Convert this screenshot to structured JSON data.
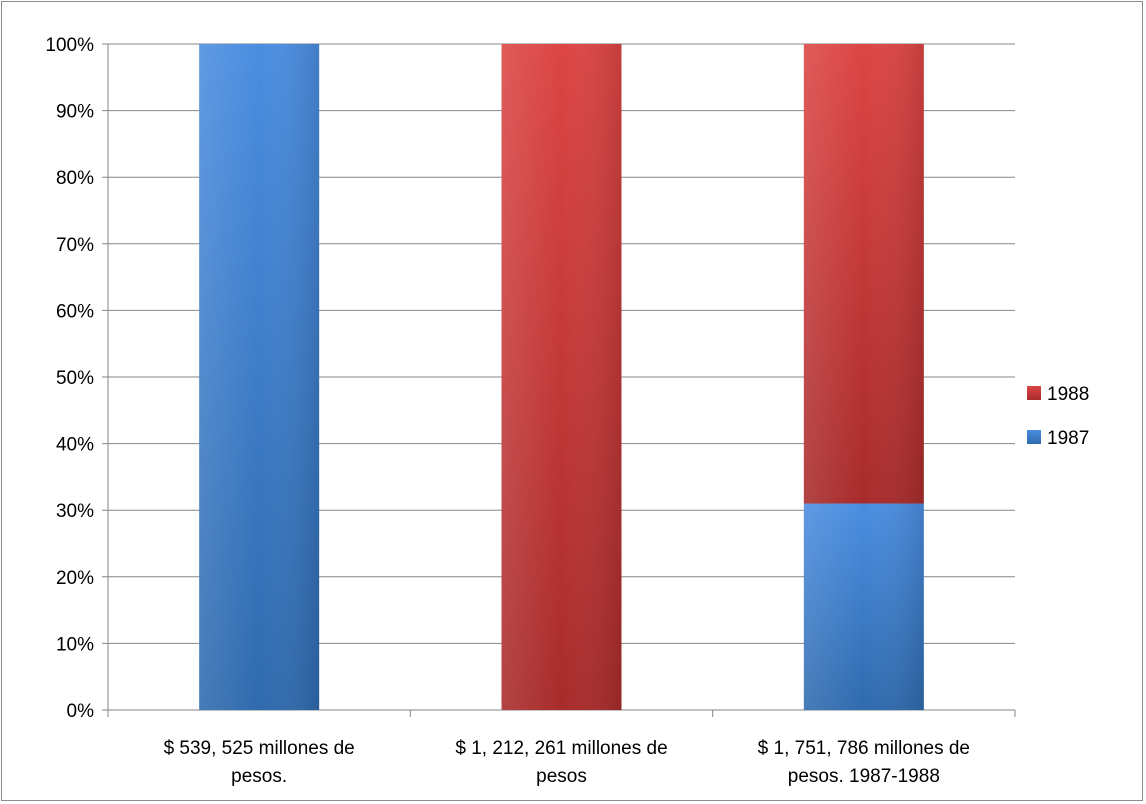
{
  "chart_data": {
    "type": "bar",
    "stacked": true,
    "percent_stacked": true,
    "categories": [
      [
        "$ 539, 525 millones de",
        "pesos."
      ],
      [
        "$ 1, 212, 261 millones de",
        "pesos"
      ],
      [
        "$ 1, 751, 786 millones de",
        "pesos.  1987-1988"
      ]
    ],
    "series": [
      {
        "name": "1987",
        "color": "#3f7fcf",
        "values": [
          100,
          0,
          31
        ]
      },
      {
        "name": "1988",
        "color": "#c9393a",
        "values": [
          0,
          100,
          69
        ]
      }
    ],
    "ylim": [
      0,
      100
    ],
    "yticks": [
      "0%",
      "10%",
      "20%",
      "30%",
      "40%",
      "50%",
      "60%",
      "70%",
      "80%",
      "90%",
      "100%"
    ],
    "legend_order": [
      "1988",
      "1987"
    ],
    "legend_position": "right",
    "grid": true,
    "title": "",
    "xlabel": "",
    "ylabel": ""
  }
}
